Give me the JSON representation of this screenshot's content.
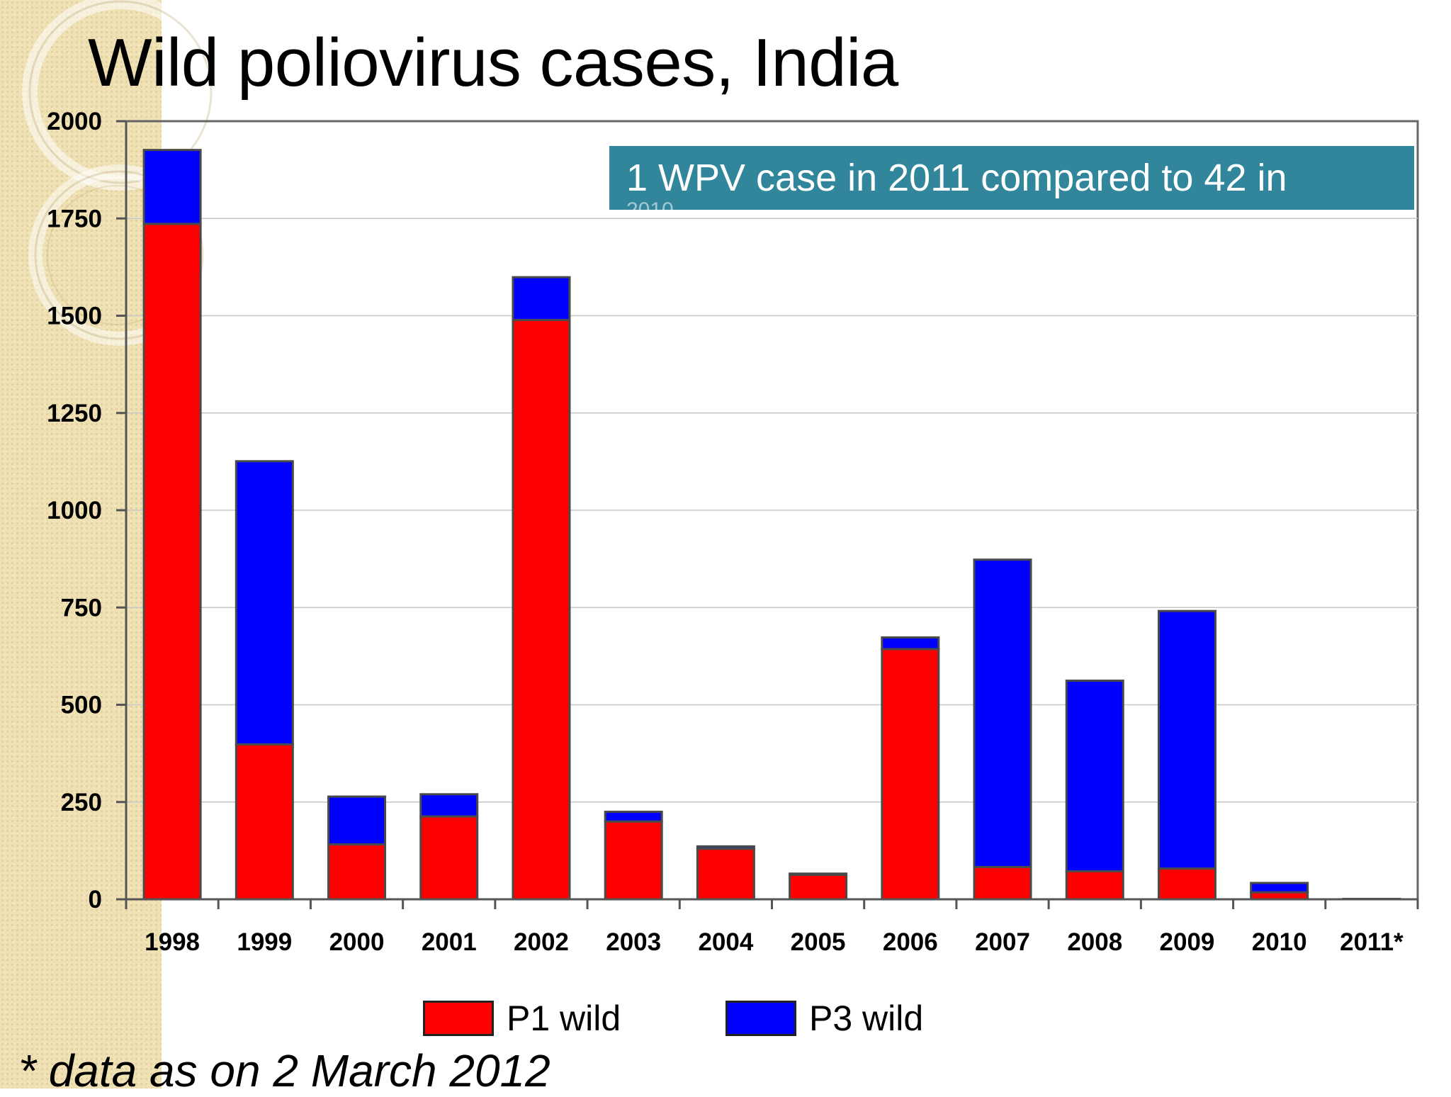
{
  "slide": {
    "title": "Wild poliovirus cases, India",
    "callout_text": "1 WPV case in 2011 compared to 42 in",
    "callout_overflow": "2010",
    "footnote": "* data as on 2 March 2012"
  },
  "colors": {
    "p1": "#ff0000",
    "p3": "#0000ff",
    "callout_bg": "#31869b"
  },
  "chart_data": {
    "type": "bar",
    "stacked": true,
    "categories": [
      "1998",
      "1999",
      "2000",
      "2001",
      "2002",
      "2003",
      "2004",
      "2005",
      "2006",
      "2007",
      "2008",
      "2009",
      "2010",
      "2011*"
    ],
    "series": [
      {
        "name": "P1 wild",
        "color": "#ff0000",
        "values": [
          1736,
          398,
          141,
          213,
          1489,
          200,
          130,
          63,
          643,
          83,
          72,
          79,
          18,
          1
        ]
      },
      {
        "name": "P3 wild",
        "color": "#0000ff",
        "values": [
          190,
          728,
          123,
          57,
          110,
          25,
          6,
          3,
          30,
          790,
          490,
          662,
          24,
          0
        ]
      }
    ],
    "yticks": [
      0,
      250,
      500,
      750,
      1000,
      1250,
      1500,
      1750,
      2000
    ],
    "ylim": [
      0,
      2000
    ],
    "grid": true,
    "legend": "bottom"
  }
}
